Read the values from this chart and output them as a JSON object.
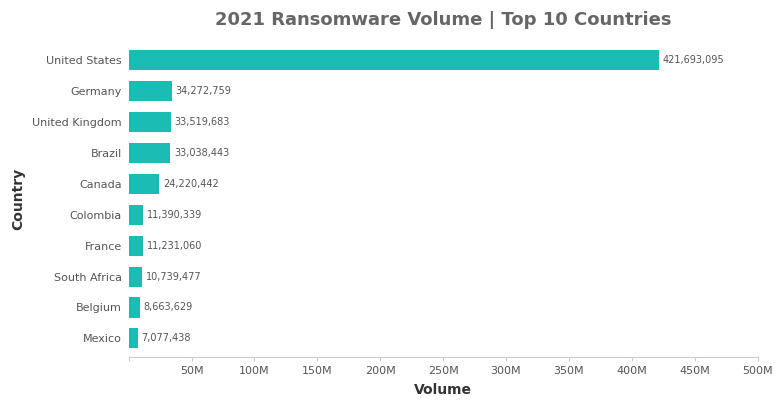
{
  "title": "2021 Ransomware Volume | Top 10 Countries",
  "xlabel": "Volume",
  "ylabel": "Country",
  "countries": [
    "United States",
    "Germany",
    "United Kingdom",
    "Brazil",
    "Canada",
    "Colombia",
    "France",
    "South Africa",
    "Belgium",
    "Mexico"
  ],
  "values": [
    421693095,
    34272759,
    33519683,
    33038443,
    24220442,
    11390339,
    11231060,
    10739477,
    8663629,
    7077438
  ],
  "bar_color": "#1ABCB4",
  "label_color": "#555555",
  "title_color": "#666666",
  "axis_label_color": "#333333",
  "bg_color": "#ffffff",
  "xlim": [
    0,
    500000000
  ],
  "xticks": [
    0,
    50000000,
    100000000,
    150000000,
    200000000,
    250000000,
    300000000,
    350000000,
    400000000,
    450000000,
    500000000
  ],
  "xtick_labels": [
    "",
    "50M",
    "100M",
    "150M",
    "200M",
    "250M",
    "300M",
    "350M",
    "400M",
    "450M",
    "500M"
  ],
  "bar_height": 0.65,
  "title_fontsize": 13,
  "axis_label_fontsize": 10,
  "tick_fontsize": 8,
  "value_fontsize": 7,
  "figsize": [
    7.84,
    4.08
  ],
  "dpi": 100
}
